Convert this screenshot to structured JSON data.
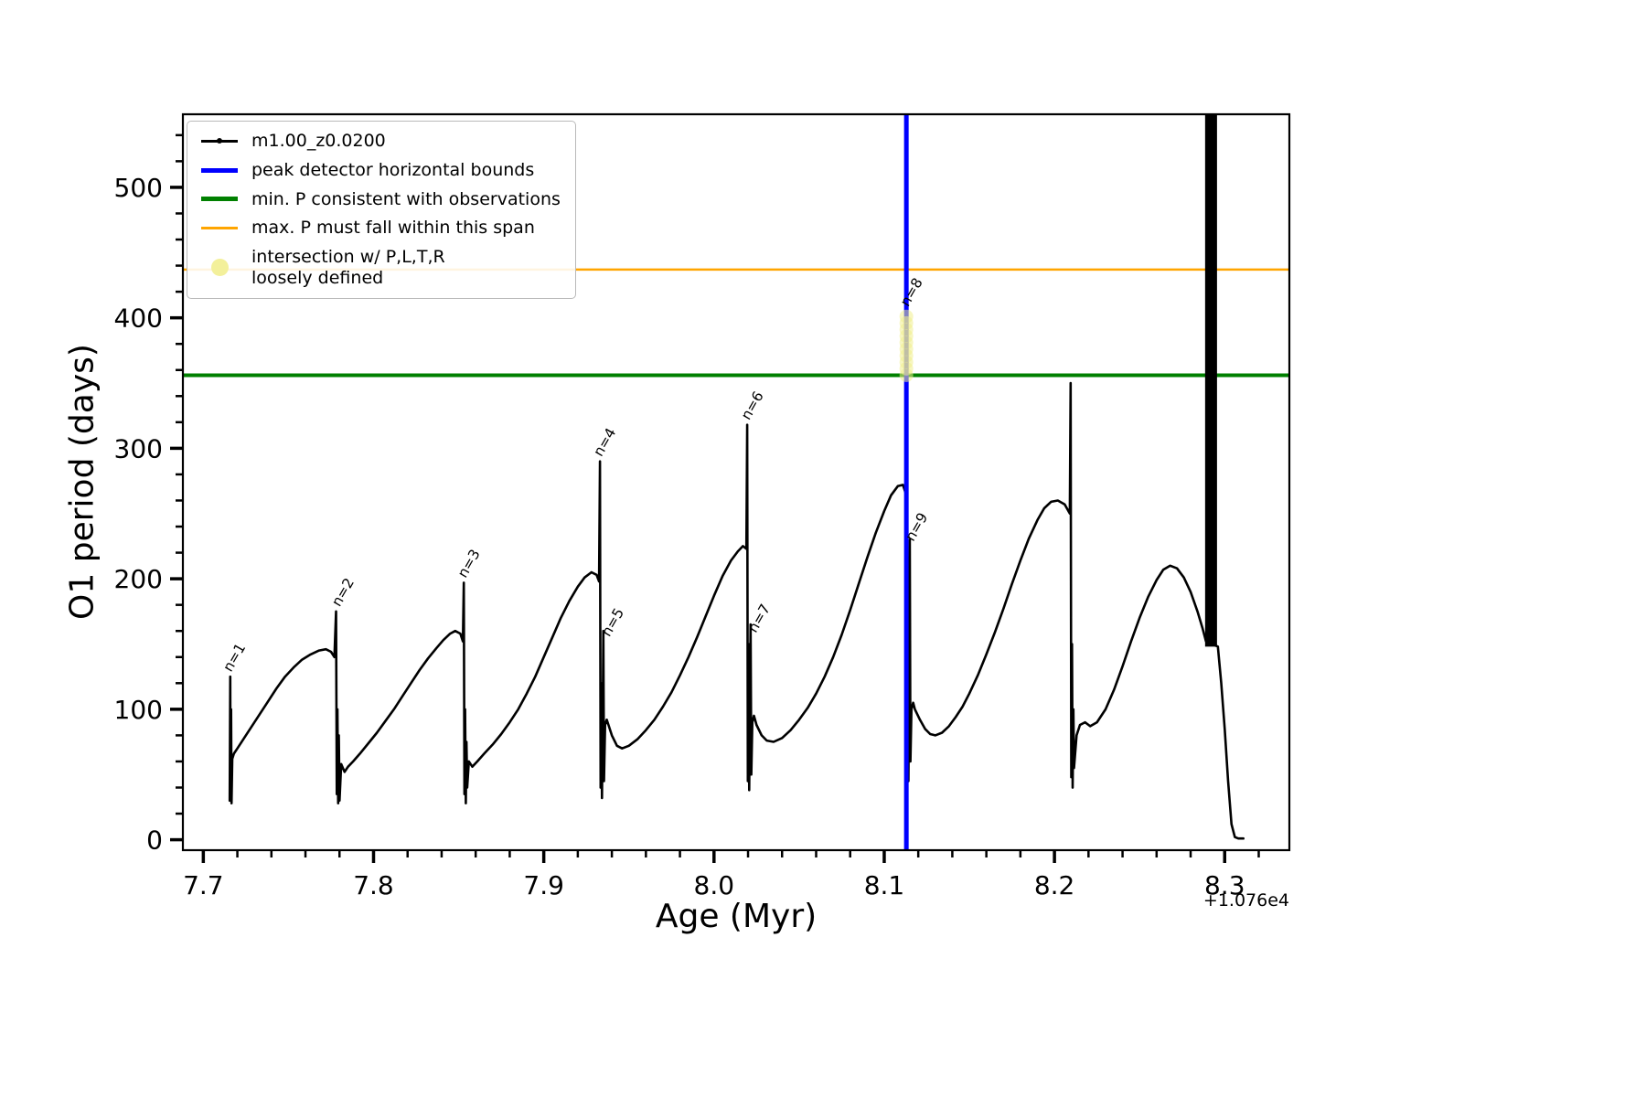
{
  "chart_data": {
    "type": "line",
    "title": "",
    "xlabel": "Age (Myr)",
    "ylabel": "O1 period (days)",
    "x_offset_label": "+1.076e4",
    "xlim": [
      7.688,
      8.338
    ],
    "ylim": [
      -8,
      556
    ],
    "grid": false,
    "legend_position": "upper left",
    "x_ticks": {
      "values": [
        7.7,
        7.8,
        7.9,
        8.0,
        8.1,
        8.2,
        8.3
      ],
      "labels": [
        "7.7",
        "7.8",
        "7.9",
        "8.0",
        "8.1",
        "8.2",
        "8.3"
      ],
      "minor_step": 0.02
    },
    "y_ticks": {
      "values": [
        0,
        100,
        200,
        300,
        400,
        500
      ],
      "labels": [
        "0",
        "100",
        "200",
        "300",
        "400",
        "500"
      ],
      "minor_step": 20
    },
    "series": [
      {
        "name": "m1.00_z0.0200",
        "color": "#000000",
        "points": [
          [
            7.7155,
            30
          ],
          [
            7.7158,
            125
          ],
          [
            7.716,
            40
          ],
          [
            7.7163,
            100
          ],
          [
            7.7166,
            28
          ],
          [
            7.717,
            62
          ],
          [
            7.718,
            66
          ],
          [
            7.72,
            70
          ],
          [
            7.724,
            78
          ],
          [
            7.728,
            86
          ],
          [
            7.733,
            96
          ],
          [
            7.738,
            106
          ],
          [
            7.743,
            116
          ],
          [
            7.748,
            125
          ],
          [
            7.753,
            132
          ],
          [
            7.758,
            138
          ],
          [
            7.763,
            142
          ],
          [
            7.768,
            145
          ],
          [
            7.772,
            146
          ],
          [
            7.775,
            144
          ],
          [
            7.777,
            140
          ],
          [
            7.778,
            175
          ],
          [
            7.7784,
            35
          ],
          [
            7.7788,
            100
          ],
          [
            7.7792,
            28
          ],
          [
            7.7796,
            80
          ],
          [
            7.78,
            30
          ],
          [
            7.781,
            58
          ],
          [
            7.783,
            52
          ],
          [
            7.785,
            56
          ],
          [
            7.788,
            60
          ],
          [
            7.792,
            66
          ],
          [
            7.797,
            74
          ],
          [
            7.802,
            82
          ],
          [
            7.807,
            91
          ],
          [
            7.812,
            100
          ],
          [
            7.817,
            110
          ],
          [
            7.822,
            120
          ],
          [
            7.827,
            130
          ],
          [
            7.832,
            139
          ],
          [
            7.837,
            147
          ],
          [
            7.841,
            153
          ],
          [
            7.845,
            158
          ],
          [
            7.848,
            160
          ],
          [
            7.851,
            158
          ],
          [
            7.8525,
            152
          ],
          [
            7.853,
            197
          ],
          [
            7.8534,
            35
          ],
          [
            7.8538,
            100
          ],
          [
            7.8542,
            28
          ],
          [
            7.8546,
            75
          ],
          [
            7.855,
            40
          ],
          [
            7.856,
            60
          ],
          [
            7.858,
            56
          ],
          [
            7.861,
            60
          ],
          [
            7.865,
            66
          ],
          [
            7.87,
            73
          ],
          [
            7.875,
            81
          ],
          [
            7.88,
            90
          ],
          [
            7.885,
            100
          ],
          [
            7.89,
            112
          ],
          [
            7.895,
            125
          ],
          [
            7.9,
            140
          ],
          [
            7.905,
            155
          ],
          [
            7.91,
            170
          ],
          [
            7.915,
            183
          ],
          [
            7.92,
            194
          ],
          [
            7.924,
            201
          ],
          [
            7.928,
            205
          ],
          [
            7.931,
            203
          ],
          [
            7.9325,
            198
          ],
          [
            7.933,
            290
          ],
          [
            7.9334,
            40
          ],
          [
            7.9338,
            120
          ],
          [
            7.9342,
            32
          ],
          [
            7.9346,
            90
          ],
          [
            7.935,
            160
          ],
          [
            7.9354,
            45
          ],
          [
            7.936,
            88
          ],
          [
            7.937,
            92
          ],
          [
            7.938,
            88
          ],
          [
            7.94,
            80
          ],
          [
            7.943,
            72
          ],
          [
            7.946,
            70
          ],
          [
            7.95,
            72
          ],
          [
            7.955,
            77
          ],
          [
            7.96,
            84
          ],
          [
            7.965,
            92
          ],
          [
            7.97,
            102
          ],
          [
            7.975,
            113
          ],
          [
            7.98,
            126
          ],
          [
            7.985,
            140
          ],
          [
            7.99,
            155
          ],
          [
            7.995,
            171
          ],
          [
            8.0,
            187
          ],
          [
            8.005,
            202
          ],
          [
            8.01,
            214
          ],
          [
            8.014,
            221
          ],
          [
            8.017,
            225
          ],
          [
            8.019,
            223
          ],
          [
            8.0195,
            318
          ],
          [
            8.0199,
            45
          ],
          [
            8.0203,
            150
          ],
          [
            8.0207,
            38
          ],
          [
            8.0211,
            100
          ],
          [
            8.0215,
            165
          ],
          [
            8.0219,
            50
          ],
          [
            8.0225,
            90
          ],
          [
            8.0235,
            95
          ],
          [
            8.025,
            88
          ],
          [
            8.028,
            80
          ],
          [
            8.031,
            76
          ],
          [
            8.035,
            75
          ],
          [
            8.04,
            78
          ],
          [
            8.045,
            84
          ],
          [
            8.05,
            92
          ],
          [
            8.055,
            101
          ],
          [
            8.06,
            112
          ],
          [
            8.065,
            125
          ],
          [
            8.07,
            140
          ],
          [
            8.075,
            157
          ],
          [
            8.08,
            176
          ],
          [
            8.085,
            196
          ],
          [
            8.09,
            216
          ],
          [
            8.095,
            235
          ],
          [
            8.1,
            252
          ],
          [
            8.104,
            264
          ],
          [
            8.108,
            271
          ],
          [
            8.111,
            272
          ],
          [
            8.1125,
            266
          ],
          [
            8.113,
            405
          ],
          [
            8.1134,
            55
          ],
          [
            8.1138,
            150
          ],
          [
            8.1142,
            45
          ],
          [
            8.1146,
            110
          ],
          [
            8.115,
            230
          ],
          [
            8.1154,
            60
          ],
          [
            8.116,
            100
          ],
          [
            8.117,
            105
          ],
          [
            8.118,
            100
          ],
          [
            8.121,
            92
          ],
          [
            8.124,
            85
          ],
          [
            8.127,
            81
          ],
          [
            8.13,
            80
          ],
          [
            8.134,
            82
          ],
          [
            8.138,
            87
          ],
          [
            8.142,
            94
          ],
          [
            8.146,
            102
          ],
          [
            8.15,
            112
          ],
          [
            8.155,
            126
          ],
          [
            8.16,
            142
          ],
          [
            8.165,
            159
          ],
          [
            8.17,
            177
          ],
          [
            8.175,
            196
          ],
          [
            8.18,
            214
          ],
          [
            8.185,
            231
          ],
          [
            8.19,
            245
          ],
          [
            8.194,
            254
          ],
          [
            8.198,
            259
          ],
          [
            8.202,
            260
          ],
          [
            8.206,
            257
          ],
          [
            8.209,
            250
          ],
          [
            8.2095,
            350
          ],
          [
            8.2099,
            48
          ],
          [
            8.2103,
            150
          ],
          [
            8.2107,
            40
          ],
          [
            8.2111,
            100
          ],
          [
            8.2115,
            55
          ],
          [
            8.213,
            80
          ],
          [
            8.215,
            88
          ],
          [
            8.218,
            90
          ],
          [
            8.221,
            87
          ],
          [
            8.225,
            90
          ],
          [
            8.23,
            100
          ],
          [
            8.235,
            115
          ],
          [
            8.24,
            133
          ],
          [
            8.245,
            152
          ],
          [
            8.25,
            170
          ],
          [
            8.255,
            186
          ],
          [
            8.26,
            199
          ],
          [
            8.264,
            207
          ],
          [
            8.268,
            210
          ],
          [
            8.272,
            208
          ],
          [
            8.276,
            201
          ],
          [
            8.28,
            190
          ],
          [
            8.284,
            175
          ],
          [
            8.287,
            162
          ],
          [
            8.289,
            152
          ],
          [
            8.296,
            148
          ],
          [
            8.298,
            120
          ],
          [
            8.3,
            85
          ],
          [
            8.302,
            45
          ],
          [
            8.304,
            12
          ],
          [
            8.306,
            2
          ],
          [
            8.308,
            1
          ],
          [
            8.311,
            1
          ]
        ]
      }
    ],
    "band": {
      "x_from": 8.2885,
      "x_to": 8.2955,
      "y_from": 148,
      "y_to": 556,
      "color": "#000000"
    },
    "hlines": [
      {
        "y": 356,
        "color": "#008000",
        "width": 4,
        "name": "min-p-line",
        "label": "min. P consistent with observations"
      },
      {
        "y": 437,
        "color": "#ffa500",
        "width": 2.5,
        "name": "max-p-line",
        "label": "max. P must fall within this span"
      }
    ],
    "vlines": [
      {
        "x": 8.113,
        "color": "#0000ff",
        "width": 5,
        "name": "peak-detector-line",
        "label": "peak detector horizontal bounds"
      }
    ],
    "intersection_marker": {
      "x": 8.113,
      "y_from": 356,
      "y_to": 405,
      "color": "#f0ee8e",
      "opacity": 0.55
    },
    "annotations": [
      {
        "x": 7.7162,
        "y": 128,
        "text": "n=1",
        "rotation": -60
      },
      {
        "x": 7.78,
        "y": 178,
        "text": "n=2",
        "rotation": -60
      },
      {
        "x": 7.854,
        "y": 200,
        "text": "n=3",
        "rotation": -60
      },
      {
        "x": 7.9338,
        "y": 293,
        "text": "n=4",
        "rotation": -60
      },
      {
        "x": 7.9385,
        "y": 155,
        "text": "n=5",
        "rotation": -60
      },
      {
        "x": 8.0205,
        "y": 321,
        "text": "n=6",
        "rotation": -60
      },
      {
        "x": 8.0245,
        "y": 158,
        "text": "n=7",
        "rotation": -60
      },
      {
        "x": 8.114,
        "y": 408,
        "text": "n=8",
        "rotation": -60
      },
      {
        "x": 8.117,
        "y": 228,
        "text": "n=9",
        "rotation": -60
      }
    ]
  },
  "legend": {
    "items": [
      {
        "label": "m1.00_z0.0200",
        "color": "#000000",
        "swatch": "line-dot"
      },
      {
        "label": "peak detector horizontal bounds",
        "color": "#0000ff",
        "swatch": "line-thick"
      },
      {
        "label": "min. P consistent with observations",
        "color": "#008000",
        "swatch": "line-thick"
      },
      {
        "label": "max. P must fall within this span",
        "color": "#ffa500",
        "swatch": "line-med"
      },
      {
        "label_lines": [
          "intersection w/ P,L,T,R",
          "loosely defined"
        ],
        "color": "#f3f09b",
        "swatch": "circle"
      }
    ]
  }
}
